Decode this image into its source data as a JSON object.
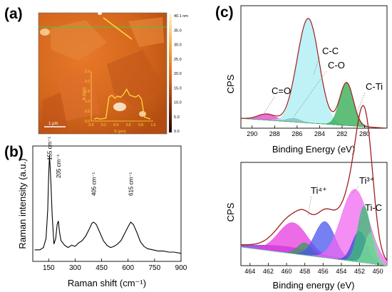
{
  "panels": {
    "a": {
      "label": "(a)"
    },
    "b": {
      "label": "(b)"
    },
    "c": {
      "label": "(c)"
    }
  },
  "afm": {
    "colorbar_ticks": [
      "40.1 nm",
      "35.0",
      "30.0",
      "25.0",
      "20.0",
      "15.0",
      "10.0",
      "5.0",
      "0.0"
    ],
    "scale_bar": "1 μm",
    "profile_ylabel": "h (nm)",
    "profile_yticks": [
      "2.5",
      "2.0",
      "1.5",
      "1.0",
      "0.5",
      "0.0"
    ],
    "profile_xticks": [
      "0.0",
      "0.2",
      "0.4",
      "0.6",
      "0.8",
      "1.0"
    ],
    "profile_xlabel": "X (μm)",
    "profile_heights_nm": [
      0.1,
      0.15,
      0.1,
      0.12,
      0.15,
      1.2,
      1.3,
      1.15,
      1.25,
      1.2,
      1.35,
      1.6,
      1.3,
      1.25,
      1.2,
      1.3,
      1.1,
      0.2,
      0.15,
      0.1
    ]
  },
  "chart_data": [
    {
      "type": "line",
      "panel": "(b)",
      "xlabel": "Raman shift (cm⁻¹)",
      "ylabel": "Raman intensity (a.u.)",
      "xlim": [
        60,
        900
      ],
      "xticks": [
        150,
        300,
        450,
        600,
        750,
        900
      ],
      "x": [
        70,
        100,
        120,
        135,
        145,
        150,
        155,
        162,
        170,
        180,
        190,
        198,
        205,
        212,
        220,
        240,
        260,
        280,
        300,
        320,
        340,
        360,
        380,
        395,
        405,
        420,
        440,
        460,
        480,
        500,
        520,
        540,
        560,
        580,
        600,
        615,
        630,
        650,
        670,
        690,
        710,
        740,
        770,
        800,
        830,
        860,
        900
      ],
      "y": [
        0.1,
        0.1,
        0.12,
        0.2,
        0.45,
        0.75,
        0.92,
        0.7,
        0.4,
        0.15,
        0.2,
        0.32,
        0.35,
        0.25,
        0.18,
        0.14,
        0.12,
        0.14,
        0.13,
        0.16,
        0.18,
        0.22,
        0.28,
        0.33,
        0.34,
        0.32,
        0.25,
        0.18,
        0.14,
        0.12,
        0.13,
        0.15,
        0.18,
        0.24,
        0.3,
        0.34,
        0.32,
        0.25,
        0.17,
        0.13,
        0.11,
        0.1,
        0.09,
        0.09,
        0.08,
        0.08,
        0.07
      ],
      "annotations": [
        {
          "text": "155 cm⁻¹",
          "x": 155
        },
        {
          "text": "205 cm⁻¹",
          "x": 205
        },
        {
          "text": "405 cm⁻¹",
          "x": 405
        },
        {
          "text": "615 cm⁻¹",
          "x": 615
        }
      ]
    },
    {
      "type": "area",
      "panel": "(c) top",
      "xlabel": "Binding Energy (eV)",
      "ylabel": "CPS",
      "xlim": [
        291,
        278
      ],
      "xticks": [
        290,
        288,
        286,
        284,
        282,
        280
      ],
      "series": [
        {
          "name": "C=O",
          "color": "#e040c8",
          "center": 288.7,
          "height": 0.05,
          "width": 0.8
        },
        {
          "name": "C-O",
          "color": "#222222",
          "center": 286.3,
          "height": 0.03,
          "width": 0.6
        },
        {
          "name": "C-C",
          "color": "#a8eef4",
          "center": 285.0,
          "height": 0.85,
          "width": 0.95
        },
        {
          "name": "C-Ti",
          "color": "#2aa84a",
          "center": 281.6,
          "height": 0.35,
          "width": 0.6
        }
      ],
      "annotations": [
        {
          "text": "C-C"
        },
        {
          "text": "C-O"
        },
        {
          "text": "C=O"
        },
        {
          "text": "C-Ti"
        }
      ]
    },
    {
      "type": "area",
      "panel": "(c) bottom",
      "xlabel": "Binding energy (eV)",
      "ylabel": "CPS",
      "xlim": [
        465,
        449
      ],
      "xticks": [
        464,
        462,
        460,
        458,
        456,
        454,
        452,
        450
      ],
      "series": [
        {
          "name": "",
          "color": "#7a2bd8",
          "center": 460,
          "height": 0.06,
          "width": 3.5
        },
        {
          "name": "",
          "color": "#e83ae0",
          "center": 459.3,
          "height": 0.3,
          "width": 1.6
        },
        {
          "name": "",
          "color": "#3a9a5a",
          "center": 458.0,
          "height": 0.12,
          "width": 0.8
        },
        {
          "name": "",
          "color": "#4a55ee",
          "center": 455.8,
          "height": 0.35,
          "width": 1.1
        },
        {
          "name": "",
          "color": "#f068f0",
          "center": 452.5,
          "height": 0.7,
          "width": 1.5
        },
        {
          "name": "",
          "color": "#3b4ad8",
          "center": 452.0,
          "height": 0.3,
          "width": 0.8
        },
        {
          "name": "",
          "color": "#35c070",
          "center": 451.5,
          "height": 0.55,
          "width": 0.7
        },
        {
          "name": "",
          "color": "#7ed8a0",
          "center": 450.8,
          "height": 0.3,
          "width": 0.6
        }
      ],
      "annotations": [
        {
          "text": "Ti⁴⁺"
        },
        {
          "text": "Ti³⁺"
        },
        {
          "text": "Ti-C"
        }
      ]
    }
  ]
}
